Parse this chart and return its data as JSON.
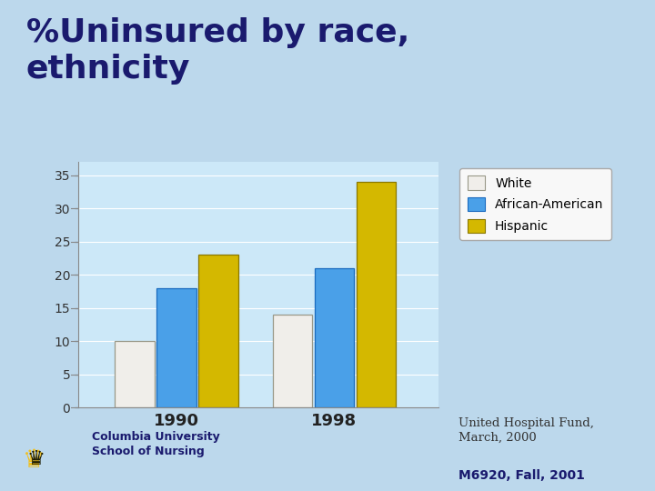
{
  "title_line1": "%Uninsured by race,",
  "title_line2": "ethnicity",
  "categories": [
    "1990",
    "1998"
  ],
  "series": {
    "White": [
      10,
      14
    ],
    "African-American": [
      18,
      21
    ],
    "Hispanic": [
      23,
      34
    ]
  },
  "bar_colors": {
    "White": "#f0eeea",
    "African-American": "#4aa0e8",
    "Hispanic": "#d4b800"
  },
  "bar_edge_colors": {
    "White": "#999888",
    "African-American": "#1a6abf",
    "Hispanic": "#8a7800"
  },
  "ylim": [
    0,
    37
  ],
  "yticks": [
    0,
    5,
    10,
    15,
    20,
    25,
    30,
    35
  ],
  "chart_bg": "#cce8f8",
  "slide_bg": "#bcd8ec",
  "top_bg": "#ffffff",
  "stripe_light_blue": "#80c8e8",
  "stripe_yellow": "#e8d840",
  "stripe_white": "#f8f8e0",
  "stripe_dark_blue": "#0000cc",
  "footer_text1": "United Hospital Fund,\nMarch, 2000",
  "footer_text2": "M6920, Fall, 2001",
  "institution": "Columbia University\nSchool of Nursing",
  "title_color": "#1a1a6e",
  "footer_color": "#333333",
  "footer_bold_color": "#1a1a6e",
  "legend_bg": "#f8f8f8"
}
